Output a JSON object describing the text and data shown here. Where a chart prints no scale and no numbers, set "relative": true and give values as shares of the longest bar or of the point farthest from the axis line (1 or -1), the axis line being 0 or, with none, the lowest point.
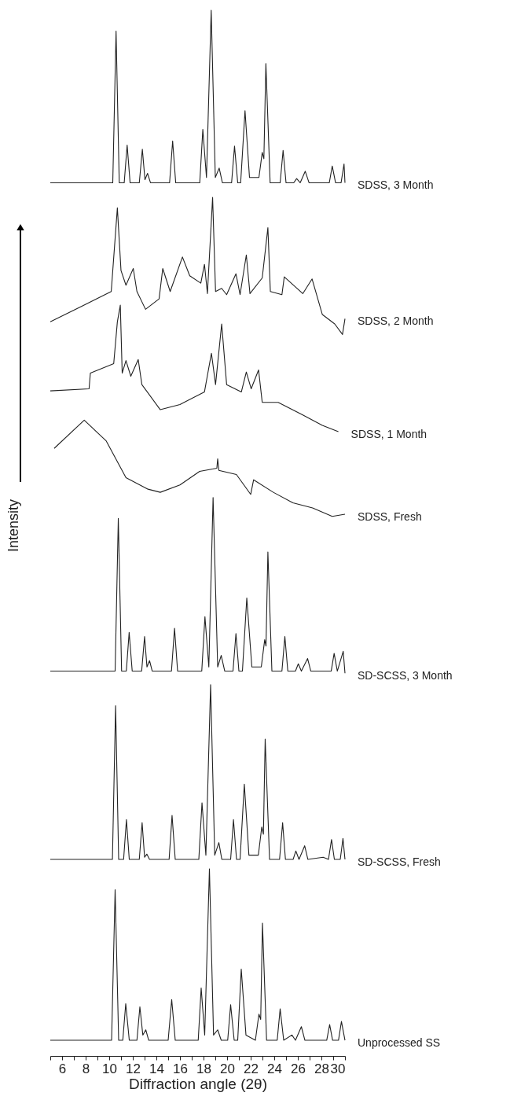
{
  "chart_data": {
    "type": "line",
    "relative": true,
    "xlabel": "Diffraction angle (2θ)",
    "ylabel": "Intensity",
    "xlim": [
      5,
      30
    ],
    "xticks": [
      {
        "value": 5,
        "label": null
      },
      6,
      {
        "value": 7,
        "label": null
      },
      8,
      {
        "value": 9,
        "label": null
      },
      10,
      {
        "value": 11,
        "label": null
      },
      12,
      {
        "value": 13,
        "label": null
      },
      14,
      {
        "value": 15,
        "label": null
      },
      16,
      {
        "value": 17,
        "label": null
      },
      18,
      {
        "value": 19,
        "label": null
      },
      20,
      {
        "value": 21,
        "label": null
      },
      22,
      {
        "value": 23,
        "label": null
      },
      24,
      {
        "value": 25,
        "label": null
      },
      26,
      {
        "value": 27,
        "label": null
      },
      28,
      {
        "value": 29,
        "label": null
      },
      30
    ],
    "grid": false,
    "legend": false,
    "marker": "none",
    "line_style": "solid",
    "series": [
      {
        "name": "SDSS, 3 Month",
        "color": "#222222",
        "x": [
          5,
          10.3,
          10.58,
          10.85,
          11.27,
          11.52,
          11.77,
          12.55,
          12.81,
          13.03,
          13.25,
          13.5,
          15.12,
          15.38,
          15.64,
          17.68,
          17.94,
          18.25,
          18.65,
          19.0,
          19.33,
          19.6,
          20.38,
          20.63,
          20.9,
          21.15,
          21.52,
          21.9,
          22.7,
          22.98,
          23.12,
          23.29,
          23.65,
          24.5,
          24.75,
          25.0,
          25.65,
          25.9,
          26.2,
          26.63,
          26.95,
          28.67,
          28.92,
          29.2,
          29.67,
          29.92,
          30
        ],
        "values": [
          0.835,
          0.835,
          0.98,
          0.835,
          0.835,
          0.871,
          0.835,
          0.835,
          0.867,
          0.838,
          0.844,
          0.835,
          0.835,
          0.875,
          0.835,
          0.835,
          0.886,
          0.84,
          1.0,
          0.84,
          0.849,
          0.835,
          0.835,
          0.87,
          0.835,
          0.835,
          0.904,
          0.84,
          0.84,
          0.864,
          0.858,
          0.949,
          0.835,
          0.835,
          0.866,
          0.835,
          0.835,
          0.839,
          0.835,
          0.846,
          0.835,
          0.835,
          0.851,
          0.835,
          0.835,
          0.853,
          0.835
        ]
      },
      {
        "name": "SDSS, 2 Month",
        "color": "#222222",
        "x": [
          5,
          7.67,
          10.17,
          10.69,
          11.0,
          11.42,
          12.04,
          12.35,
          13.08,
          14.23,
          14.54,
          15.17,
          16.21,
          16.83,
          17.77,
          18.08,
          18.33,
          18.77,
          19.02,
          19.54,
          19.96,
          20.75,
          21.1,
          21.63,
          21.94,
          22.98,
          23.46,
          23.67,
          24.65,
          24.85,
          26.42,
          27.21,
          28.08,
          29.13,
          29.79,
          30
        ],
        "values": [
          0.702,
          0.717,
          0.731,
          0.811,
          0.751,
          0.737,
          0.753,
          0.731,
          0.714,
          0.724,
          0.753,
          0.731,
          0.764,
          0.746,
          0.739,
          0.757,
          0.729,
          0.821,
          0.731,
          0.734,
          0.728,
          0.748,
          0.728,
          0.766,
          0.729,
          0.744,
          0.792,
          0.731,
          0.728,
          0.745,
          0.729,
          0.743,
          0.709,
          0.7,
          0.69,
          0.705
        ]
      },
      {
        "name": "SDSS, 1 Month",
        "color": "#222222",
        "x": [
          5,
          8.29,
          8.4,
          10.38,
          10.69,
          10.94,
          11.1,
          11.42,
          11.83,
          12.46,
          12.77,
          14.33,
          16.0,
          18.08,
          18.67,
          19.02,
          19.54,
          19.96,
          21.21,
          21.63,
          22.04,
          22.67,
          22.98,
          24.33,
          26.42,
          28.08,
          29.44
        ],
        "values": [
          0.636,
          0.638,
          0.653,
          0.662,
          0.702,
          0.718,
          0.653,
          0.665,
          0.65,
          0.666,
          0.642,
          0.618,
          0.623,
          0.635,
          0.672,
          0.642,
          0.7,
          0.642,
          0.635,
          0.654,
          0.638,
          0.656,
          0.625,
          0.625,
          0.613,
          0.603,
          0.597
        ]
      },
      {
        "name": "SDSS, Fresh",
        "color": "#222222",
        "x": [
          5.33,
          7.88,
          9.75,
          11.42,
          13.29,
          14.33,
          16.0,
          17.67,
          19.13,
          19.2,
          19.3,
          20.79,
          22.0,
          22.25,
          23.92,
          25.58,
          27.25,
          28.92,
          30
        ],
        "values": [
          0.581,
          0.608,
          0.588,
          0.553,
          0.542,
          0.539,
          0.546,
          0.559,
          0.562,
          0.571,
          0.56,
          0.556,
          0.537,
          0.551,
          0.539,
          0.529,
          0.524,
          0.516,
          0.518
        ]
      },
      {
        "name": "SD-SCSS, 3 Month",
        "color": "#222222",
        "x": [
          5,
          10.5,
          10.77,
          11.05,
          11.45,
          11.69,
          11.95,
          12.75,
          13.0,
          13.2,
          13.42,
          13.65,
          15.28,
          15.54,
          15.8,
          17.85,
          18.12,
          18.45,
          18.81,
          19.2,
          19.5,
          19.8,
          20.5,
          20.75,
          21.0,
          21.3,
          21.67,
          22.1,
          22.9,
          23.19,
          23.3,
          23.46,
          23.8,
          24.65,
          24.9,
          25.15,
          25.8,
          26.04,
          26.3,
          26.83,
          27.1,
          28.83,
          29.08,
          29.35,
          29.85,
          30
        ],
        "values": [
          0.368,
          0.368,
          0.514,
          0.368,
          0.368,
          0.405,
          0.368,
          0.368,
          0.401,
          0.372,
          0.378,
          0.368,
          0.368,
          0.409,
          0.368,
          0.368,
          0.42,
          0.372,
          0.534,
          0.372,
          0.383,
          0.368,
          0.368,
          0.404,
          0.368,
          0.368,
          0.438,
          0.372,
          0.372,
          0.398,
          0.392,
          0.482,
          0.368,
          0.368,
          0.401,
          0.368,
          0.368,
          0.375,
          0.368,
          0.38,
          0.368,
          0.368,
          0.385,
          0.368,
          0.387,
          0.366
        ]
      },
      {
        "name": "SD-SCSS, Fresh",
        "color": "#222222",
        "x": [
          5,
          10.27,
          10.54,
          10.8,
          11.22,
          11.46,
          11.7,
          12.55,
          12.79,
          13.0,
          13.19,
          13.42,
          15.08,
          15.33,
          15.6,
          17.6,
          17.87,
          18.2,
          18.6,
          18.95,
          19.3,
          19.55,
          20.3,
          20.54,
          20.8,
          21.1,
          21.46,
          21.85,
          22.65,
          22.94,
          23.08,
          23.23,
          23.6,
          24.45,
          24.71,
          24.95,
          25.6,
          25.83,
          26.1,
          26.58,
          26.85,
          28.15,
          28.6,
          28.86,
          29.1,
          29.6,
          29.83,
          30
        ],
        "values": [
          0.188,
          0.188,
          0.335,
          0.188,
          0.188,
          0.226,
          0.188,
          0.188,
          0.223,
          0.19,
          0.193,
          0.188,
          0.188,
          0.23,
          0.188,
          0.188,
          0.242,
          0.192,
          0.355,
          0.192,
          0.204,
          0.188,
          0.188,
          0.226,
          0.188,
          0.188,
          0.26,
          0.192,
          0.192,
          0.219,
          0.212,
          0.303,
          0.188,
          0.188,
          0.223,
          0.188,
          0.188,
          0.196,
          0.188,
          0.201,
          0.188,
          0.19,
          0.188,
          0.207,
          0.188,
          0.188,
          0.208,
          0.188
        ]
      },
      {
        "name": "Unprocessed SS",
        "color": "#222222",
        "x": [
          5,
          10.2,
          10.5,
          10.8,
          11.15,
          11.4,
          11.7,
          12.35,
          12.6,
          12.85,
          13.1,
          13.35,
          15.0,
          15.3,
          15.6,
          17.55,
          17.8,
          18.1,
          18.5,
          18.85,
          19.2,
          19.5,
          20.05,
          20.3,
          20.6,
          20.9,
          21.2,
          21.6,
          22.4,
          22.7,
          22.85,
          23.0,
          23.35,
          24.25,
          24.5,
          24.8,
          25.5,
          25.8,
          26.3,
          26.6,
          28.45,
          28.7,
          28.95,
          29.45,
          29.7,
          30
        ],
        "values": [
          0.015,
          0.015,
          0.159,
          0.015,
          0.015,
          0.05,
          0.015,
          0.015,
          0.047,
          0.02,
          0.025,
          0.015,
          0.015,
          0.054,
          0.015,
          0.015,
          0.065,
          0.02,
          0.179,
          0.02,
          0.025,
          0.015,
          0.015,
          0.049,
          0.015,
          0.015,
          0.083,
          0.02,
          0.015,
          0.04,
          0.035,
          0.127,
          0.015,
          0.015,
          0.045,
          0.015,
          0.02,
          0.015,
          0.028,
          0.015,
          0.015,
          0.03,
          0.015,
          0.015,
          0.033,
          0.015
        ]
      }
    ]
  }
}
